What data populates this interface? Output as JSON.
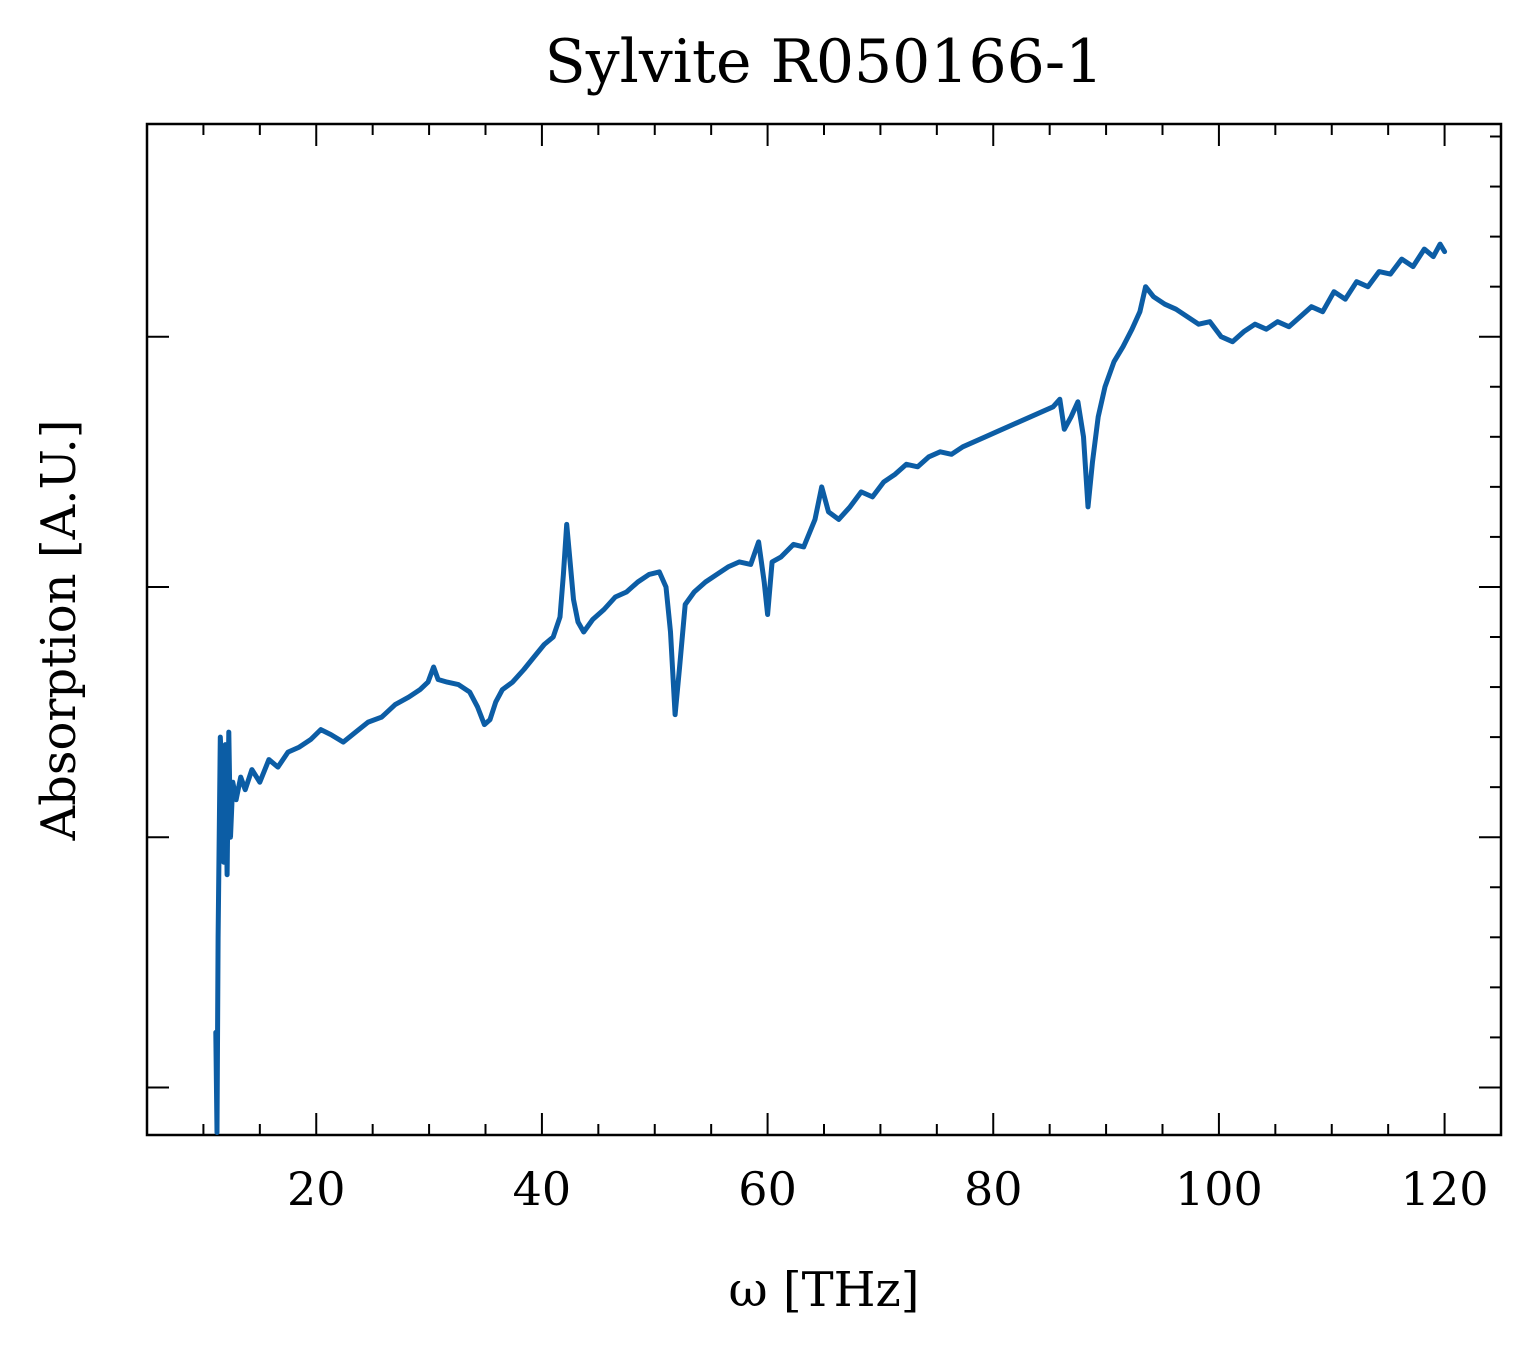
{
  "chart_data": {
    "type": "line",
    "title": "Sylvite R050166-1",
    "xlabel": "ω [THz]",
    "ylabel": "Absorption [A.U.]",
    "xlim": [
      5,
      125
    ],
    "ylim": [
      -0.19,
      3.85
    ],
    "x_ticks": [
      20,
      40,
      60,
      80,
      100,
      120
    ],
    "x_tick_labels": [
      "20",
      "40",
      "60",
      "80",
      "100",
      "120"
    ],
    "y_major_ticks": [
      0,
      1,
      2,
      3
    ],
    "y_tick_labels_shown": false,
    "grid": false,
    "legend": "none",
    "color": "#0C5DA5",
    "series": [
      {
        "points": [
          [
            11.1,
            0.22
          ],
          [
            11.2,
            -0.18
          ],
          [
            11.3,
            0.6
          ],
          [
            11.5,
            1.4
          ],
          [
            11.6,
            1.3
          ],
          [
            11.8,
            0.9
          ],
          [
            11.95,
            1.37
          ],
          [
            12.1,
            0.85
          ],
          [
            12.25,
            1.42
          ],
          [
            12.4,
            1.0
          ],
          [
            12.6,
            1.22
          ],
          [
            12.9,
            1.15
          ],
          [
            13.3,
            1.24
          ],
          [
            13.7,
            1.19
          ],
          [
            14.3,
            1.27
          ],
          [
            15.0,
            1.22
          ],
          [
            15.8,
            1.31
          ],
          [
            16.6,
            1.28
          ],
          [
            17.5,
            1.34
          ],
          [
            18.5,
            1.36
          ],
          [
            19.5,
            1.39
          ],
          [
            20.4,
            1.43
          ],
          [
            21.3,
            1.41
          ],
          [
            22.4,
            1.38
          ],
          [
            23.5,
            1.42
          ],
          [
            24.6,
            1.46
          ],
          [
            25.8,
            1.48
          ],
          [
            27.0,
            1.53
          ],
          [
            28.2,
            1.56
          ],
          [
            29.2,
            1.59
          ],
          [
            29.9,
            1.62
          ],
          [
            30.4,
            1.68
          ],
          [
            30.8,
            1.63
          ],
          [
            31.6,
            1.62
          ],
          [
            32.6,
            1.61
          ],
          [
            33.6,
            1.58
          ],
          [
            34.3,
            1.52
          ],
          [
            34.9,
            1.45
          ],
          [
            35.4,
            1.47
          ],
          [
            35.9,
            1.54
          ],
          [
            36.5,
            1.59
          ],
          [
            37.4,
            1.62
          ],
          [
            38.4,
            1.67
          ],
          [
            39.3,
            1.72
          ],
          [
            40.2,
            1.77
          ],
          [
            41.0,
            1.8
          ],
          [
            41.6,
            1.88
          ],
          [
            41.9,
            2.05
          ],
          [
            42.2,
            2.25
          ],
          [
            42.5,
            2.1
          ],
          [
            42.8,
            1.95
          ],
          [
            43.2,
            1.86
          ],
          [
            43.7,
            1.82
          ],
          [
            44.5,
            1.87
          ],
          [
            45.5,
            1.91
          ],
          [
            46.5,
            1.96
          ],
          [
            47.5,
            1.98
          ],
          [
            48.5,
            2.02
          ],
          [
            49.5,
            2.05
          ],
          [
            50.4,
            2.06
          ],
          [
            51.0,
            2.0
          ],
          [
            51.4,
            1.82
          ],
          [
            51.8,
            1.49
          ],
          [
            52.2,
            1.68
          ],
          [
            52.7,
            1.93
          ],
          [
            53.5,
            1.98
          ],
          [
            54.5,
            2.02
          ],
          [
            55.5,
            2.05
          ],
          [
            56.5,
            2.08
          ],
          [
            57.5,
            2.1
          ],
          [
            58.5,
            2.09
          ],
          [
            59.2,
            2.18
          ],
          [
            59.7,
            2.02
          ],
          [
            60.0,
            1.89
          ],
          [
            60.4,
            2.1
          ],
          [
            61.2,
            2.12
          ],
          [
            62.3,
            2.17
          ],
          [
            63.2,
            2.16
          ],
          [
            64.2,
            2.27
          ],
          [
            64.8,
            2.4
          ],
          [
            65.4,
            2.3
          ],
          [
            66.3,
            2.27
          ],
          [
            67.3,
            2.32
          ],
          [
            68.3,
            2.38
          ],
          [
            69.3,
            2.36
          ],
          [
            70.3,
            2.42
          ],
          [
            71.3,
            2.45
          ],
          [
            72.3,
            2.49
          ],
          [
            73.3,
            2.48
          ],
          [
            74.3,
            2.52
          ],
          [
            75.3,
            2.54
          ],
          [
            76.3,
            2.53
          ],
          [
            77.3,
            2.56
          ],
          [
            78.3,
            2.58
          ],
          [
            79.3,
            2.6
          ],
          [
            80.3,
            2.62
          ],
          [
            81.3,
            2.64
          ],
          [
            82.3,
            2.66
          ],
          [
            83.3,
            2.68
          ],
          [
            84.3,
            2.7
          ],
          [
            85.3,
            2.72
          ],
          [
            85.9,
            2.75
          ],
          [
            86.3,
            2.63
          ],
          [
            86.9,
            2.68
          ],
          [
            87.5,
            2.74
          ],
          [
            88.0,
            2.6
          ],
          [
            88.4,
            2.32
          ],
          [
            88.8,
            2.5
          ],
          [
            89.3,
            2.68
          ],
          [
            89.9,
            2.8
          ],
          [
            90.7,
            2.9
          ],
          [
            91.5,
            2.96
          ],
          [
            92.3,
            3.03
          ],
          [
            93.0,
            3.1
          ],
          [
            93.5,
            3.2
          ],
          [
            94.2,
            3.16
          ],
          [
            95.2,
            3.13
          ],
          [
            96.2,
            3.11
          ],
          [
            97.2,
            3.08
          ],
          [
            98.2,
            3.05
          ],
          [
            99.2,
            3.06
          ],
          [
            100.2,
            3.0
          ],
          [
            101.2,
            2.98
          ],
          [
            102.2,
            3.02
          ],
          [
            103.2,
            3.05
          ],
          [
            104.2,
            3.03
          ],
          [
            105.2,
            3.06
          ],
          [
            106.2,
            3.04
          ],
          [
            107.2,
            3.08
          ],
          [
            108.2,
            3.12
          ],
          [
            109.2,
            3.1
          ],
          [
            110.2,
            3.18
          ],
          [
            111.2,
            3.15
          ],
          [
            112.2,
            3.22
          ],
          [
            113.2,
            3.2
          ],
          [
            114.2,
            3.26
          ],
          [
            115.2,
            3.25
          ],
          [
            116.2,
            3.31
          ],
          [
            117.2,
            3.28
          ],
          [
            118.2,
            3.35
          ],
          [
            119.0,
            3.32
          ],
          [
            119.6,
            3.37
          ],
          [
            120.0,
            3.34
          ]
        ]
      }
    ]
  }
}
